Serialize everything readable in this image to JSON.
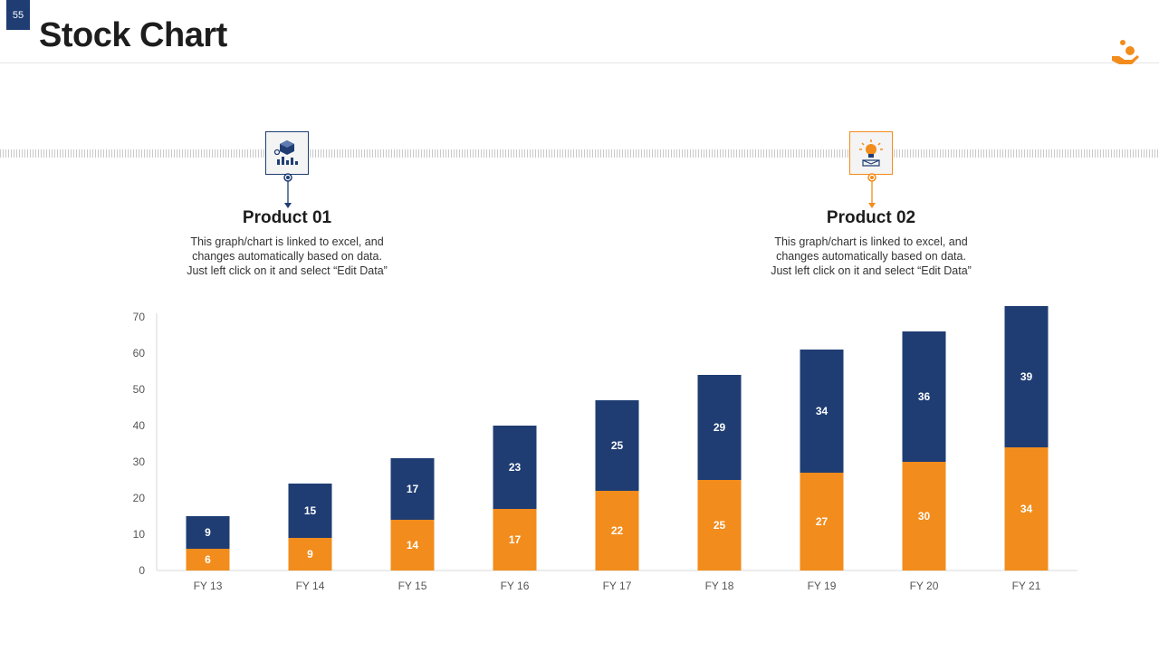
{
  "page_number": "55",
  "title": "Stock Chart",
  "colors": {
    "navy": "#1f3d73",
    "orange": "#f28c1c"
  },
  "products": [
    {
      "title": "Product 01",
      "icon": "product-analytics-icon",
      "description": [
        "This graph/chart is linked to excel, and",
        "changes automatically based on data.",
        "Just left click on it and select “Edit Data”"
      ]
    },
    {
      "title": "Product 02",
      "icon": "idea-bulb-icon",
      "description": [
        "This graph/chart is linked to excel, and",
        "changes automatically based on data.",
        "Just left click on it and select “Edit Data”"
      ]
    }
  ],
  "chart_data": {
    "type": "bar",
    "stacked": true,
    "categories": [
      "FY 13",
      "FY 14",
      "FY 15",
      "FY 16",
      "FY 17",
      "FY 18",
      "FY 19",
      "FY 20",
      "FY 21"
    ],
    "series": [
      {
        "name": "Product 02",
        "color": "#f28c1c",
        "values": [
          6,
          9,
          14,
          17,
          22,
          25,
          27,
          30,
          34
        ]
      },
      {
        "name": "Product 01",
        "color": "#1f3d73",
        "values": [
          9,
          15,
          17,
          23,
          25,
          29,
          34,
          36,
          39
        ]
      }
    ],
    "title": "Stock Chart",
    "xlabel": "",
    "ylabel": "",
    "ylim": [
      0,
      70
    ],
    "yticks": [
      0,
      10,
      20,
      30,
      40,
      50,
      60,
      70
    ],
    "grid": false
  }
}
